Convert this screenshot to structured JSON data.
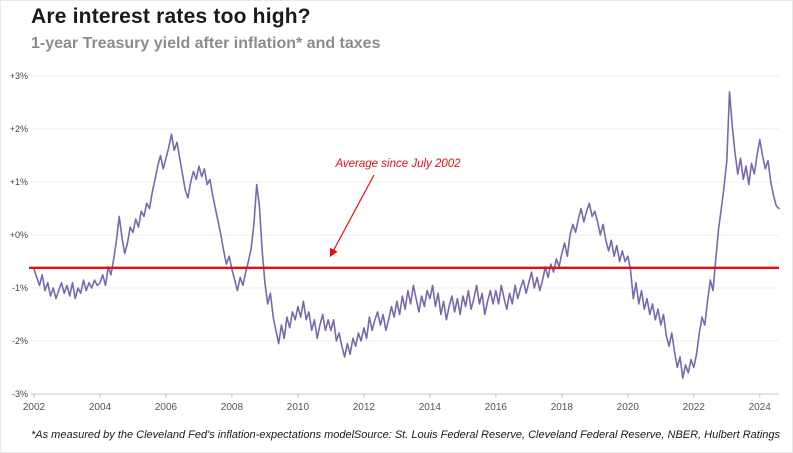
{
  "page": {
    "title": "Are interest rates too high?",
    "subtitle": "1-year Treasury yield after inflation* and taxes",
    "footnote": "*As measured by the Cleveland Fed's inflation-expectations model",
    "source": "Source: St. Louis Federal Reserve, Cleveland Federal Reserve, NBER, Hulbert Ratings"
  },
  "chart_data": {
    "type": "line",
    "title": "Are interest rates too high?",
    "subtitle": "1-year Treasury yield after inflation* and taxes",
    "ylim": [
      -3,
      3
    ],
    "grid": true,
    "x_start_year": 2002,
    "x_step_months": 1,
    "y_ticks": [
      "+3%",
      "+2%",
      "+1%",
      "+0%",
      "-1%",
      "-2%",
      "-3%"
    ],
    "y_tick_values": [
      3,
      2,
      1,
      0,
      -1,
      -2,
      -3
    ],
    "x_ticks": [
      2002,
      2004,
      2006,
      2008,
      2010,
      2012,
      2014,
      2016,
      2018,
      2020,
      2022,
      2024
    ],
    "average_line": {
      "value": -0.62,
      "label": "Average since July 2002",
      "color": "#e01010"
    },
    "series": [
      {
        "name": "1-year Treasury yield after inflation and taxes",
        "color": "#7a68ad",
        "values": [
          -0.65,
          -0.8,
          -0.95,
          -0.75,
          -1.05,
          -0.9,
          -1.15,
          -1.0,
          -1.2,
          -1.05,
          -0.9,
          -1.1,
          -0.95,
          -1.15,
          -0.9,
          -1.2,
          -1.0,
          -1.1,
          -0.85,
          -1.05,
          -0.9,
          -1.0,
          -0.85,
          -0.95,
          -0.9,
          -0.75,
          -0.95,
          -0.6,
          -0.75,
          -0.45,
          -0.1,
          0.35,
          -0.05,
          -0.35,
          -0.15,
          0.15,
          0.05,
          0.3,
          0.15,
          0.45,
          0.35,
          0.6,
          0.5,
          0.8,
          1.05,
          1.3,
          1.5,
          1.25,
          1.45,
          1.65,
          1.9,
          1.6,
          1.75,
          1.45,
          1.15,
          0.85,
          0.7,
          1.0,
          1.2,
          1.05,
          1.3,
          1.1,
          1.25,
          0.95,
          1.05,
          0.75,
          0.5,
          0.25,
          0.0,
          -0.3,
          -0.55,
          -0.4,
          -0.65,
          -0.85,
          -1.05,
          -0.8,
          -0.95,
          -0.7,
          -0.5,
          -0.25,
          0.2,
          0.95,
          0.55,
          -0.3,
          -0.9,
          -1.3,
          -1.1,
          -1.55,
          -1.8,
          -2.05,
          -1.7,
          -1.95,
          -1.55,
          -1.75,
          -1.45,
          -1.6,
          -1.35,
          -1.55,
          -1.25,
          -1.6,
          -1.45,
          -1.8,
          -1.6,
          -1.95,
          -1.7,
          -1.5,
          -1.8,
          -1.6,
          -1.8,
          -1.6,
          -2.0,
          -1.85,
          -2.1,
          -2.3,
          -2.05,
          -2.25,
          -1.95,
          -2.1,
          -1.85,
          -2.0,
          -1.75,
          -1.95,
          -1.55,
          -1.8,
          -1.6,
          -1.45,
          -1.7,
          -1.5,
          -1.8,
          -1.6,
          -1.35,
          -1.55,
          -1.25,
          -1.5,
          -1.15,
          -1.4,
          -1.05,
          -1.3,
          -0.95,
          -1.2,
          -1.45,
          -1.15,
          -1.35,
          -1.05,
          -1.2,
          -0.95,
          -1.35,
          -1.1,
          -1.5,
          -1.25,
          -1.6,
          -1.35,
          -1.15,
          -1.45,
          -1.2,
          -1.5,
          -1.15,
          -1.35,
          -1.05,
          -1.4,
          -1.2,
          -0.95,
          -1.3,
          -1.1,
          -1.5,
          -1.25,
          -1.05,
          -1.3,
          -1.05,
          -1.3,
          -0.95,
          -1.2,
          -1.4,
          -1.1,
          -1.3,
          -0.95,
          -1.2,
          -1.0,
          -0.85,
          -1.1,
          -0.9,
          -0.7,
          -1.0,
          -0.8,
          -1.05,
          -0.85,
          -0.6,
          -0.8,
          -0.55,
          -0.7,
          -0.45,
          -0.6,
          -0.35,
          -0.15,
          -0.4,
          0.0,
          0.2,
          0.05,
          0.3,
          0.5,
          0.25,
          0.45,
          0.6,
          0.35,
          0.45,
          0.25,
          0.0,
          0.2,
          -0.1,
          -0.3,
          -0.1,
          -0.4,
          -0.2,
          -0.5,
          -0.3,
          -0.5,
          -0.4,
          -0.65,
          -1.2,
          -0.9,
          -1.3,
          -1.05,
          -1.4,
          -1.2,
          -1.5,
          -1.3,
          -1.6,
          -1.4,
          -1.7,
          -1.5,
          -1.9,
          -2.1,
          -1.85,
          -2.2,
          -2.5,
          -2.3,
          -2.7,
          -2.45,
          -2.6,
          -2.35,
          -2.5,
          -2.25,
          -1.85,
          -1.55,
          -1.7,
          -1.25,
          -0.85,
          -1.05,
          -0.45,
          0.1,
          0.5,
          0.9,
          1.4,
          2.7,
          2.05,
          1.55,
          1.15,
          1.45,
          1.05,
          1.3,
          0.95,
          1.35,
          1.15,
          1.5,
          1.8,
          1.5,
          1.25,
          1.4,
          1.0,
          0.75,
          0.55,
          0.5
        ]
      }
    ]
  }
}
